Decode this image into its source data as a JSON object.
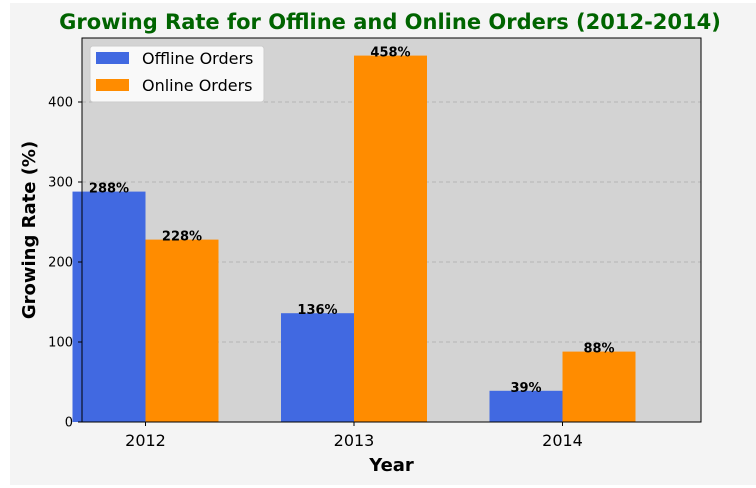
{
  "chart_data": {
    "type": "bar",
    "title": "Growing Rate for Offline and Online Orders (2012-2014)",
    "xlabel": "Year",
    "ylabel": "Growing Rate (%)",
    "categories": [
      "2012",
      "2013",
      "2014"
    ],
    "series": [
      {
        "name": "Offline Orders",
        "values": [
          288,
          136,
          39
        ],
        "color": "#4169e1",
        "labels": [
          "288%",
          "136%",
          "39%"
        ]
      },
      {
        "name": "Online Orders",
        "values": [
          228,
          458,
          88
        ],
        "color": "#ff8c00",
        "labels": [
          "228%",
          "458%",
          "88%"
        ]
      }
    ],
    "ylim": [
      0,
      480
    ],
    "yticks": [
      "0",
      "100",
      "200",
      "300",
      "400"
    ],
    "grid": true,
    "legend_position": "top-left",
    "colors": {
      "title": "#006400",
      "plot_background": "#d3d3d3",
      "figure_background": "#f4f4f4"
    }
  }
}
